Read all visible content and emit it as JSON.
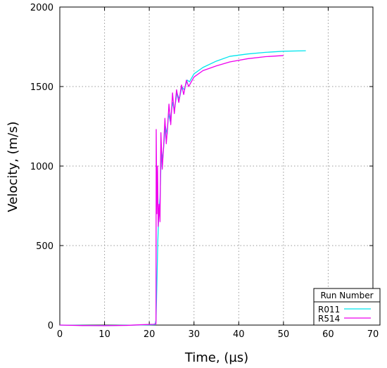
{
  "chart_data": {
    "type": "line",
    "xlabel": "Time, (µs)",
    "ylabel": "Velocity, (m/s)",
    "xlim": [
      0,
      70
    ],
    "ylim": [
      0,
      2000
    ],
    "xticks": [
      0,
      10,
      20,
      30,
      40,
      50,
      60,
      70
    ],
    "yticks": [
      0,
      500,
      1000,
      1500,
      2000
    ],
    "grid": true,
    "legend": {
      "title": "Run Number",
      "position": "bottom-right"
    },
    "series": [
      {
        "name": "R011",
        "color": "#00e5ee",
        "points": [
          [
            0,
            0
          ],
          [
            5,
            -2
          ],
          [
            10,
            -3
          ],
          [
            15,
            -1
          ],
          [
            20,
            2
          ],
          [
            21.3,
            3
          ],
          [
            21.5,
            30
          ],
          [
            21.7,
            250
          ],
          [
            21.9,
            520
          ],
          [
            22.1,
            680
          ],
          [
            22.4,
            800
          ],
          [
            22.7,
            1100
          ],
          [
            23.0,
            1040
          ],
          [
            23.3,
            1150
          ],
          [
            23.6,
            1250
          ],
          [
            24.0,
            1200
          ],
          [
            24.3,
            1330
          ],
          [
            24.7,
            1280
          ],
          [
            25.2,
            1400
          ],
          [
            25.6,
            1350
          ],
          [
            26.2,
            1460
          ],
          [
            26.7,
            1420
          ],
          [
            27.3,
            1500
          ],
          [
            27.8,
            1480
          ],
          [
            28.5,
            1540
          ],
          [
            29.0,
            1530
          ],
          [
            30,
            1580
          ],
          [
            32,
            1620
          ],
          [
            35,
            1660
          ],
          [
            38,
            1690
          ],
          [
            42,
            1705
          ],
          [
            46,
            1715
          ],
          [
            50,
            1722
          ],
          [
            55,
            1725
          ]
        ]
      },
      {
        "name": "R514",
        "color": "#ee00ee",
        "points": [
          [
            0,
            0
          ],
          [
            5,
            -3
          ],
          [
            10,
            -4
          ],
          [
            15,
            -2
          ],
          [
            18,
            2
          ],
          [
            21,
            5
          ],
          [
            21.5,
            8
          ],
          [
            21.55,
            1230
          ],
          [
            21.7,
            700
          ],
          [
            21.85,
            1000
          ],
          [
            22.0,
            620
          ],
          [
            22.2,
            760
          ],
          [
            22.4,
            650
          ],
          [
            22.6,
            1210
          ],
          [
            22.9,
            980
          ],
          [
            23.2,
            1120
          ],
          [
            23.5,
            1300
          ],
          [
            23.8,
            1140
          ],
          [
            24.1,
            1250
          ],
          [
            24.4,
            1390
          ],
          [
            24.8,
            1260
          ],
          [
            25.2,
            1460
          ],
          [
            25.6,
            1330
          ],
          [
            26.1,
            1480
          ],
          [
            26.6,
            1400
          ],
          [
            27.2,
            1510
          ],
          [
            27.7,
            1450
          ],
          [
            28.3,
            1540
          ],
          [
            28.8,
            1500
          ],
          [
            30,
            1560
          ],
          [
            32,
            1600
          ],
          [
            35,
            1630
          ],
          [
            38,
            1655
          ],
          [
            42,
            1675
          ],
          [
            46,
            1688
          ],
          [
            50,
            1695
          ]
        ]
      }
    ]
  }
}
